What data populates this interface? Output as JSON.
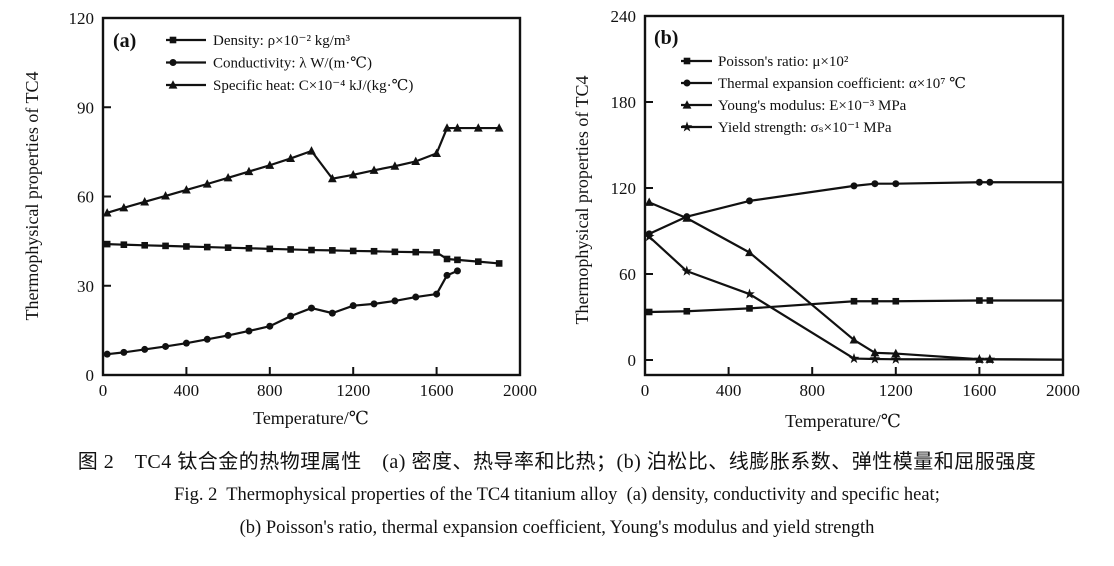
{
  "figure": {
    "caption_zh": "图 2　TC4 钛合金的热物理属性　(a) 密度、热导率和比热；(b) 泊松比、线膨胀系数、弹性模量和屈服强度",
    "caption_en_line1": "Fig. 2  Thermophysical properties of the TC4 titanium alloy  (a) density, conductivity and specific heat;",
    "caption_en_line2": "(b) Poisson's ratio, thermal expansion coefficient, Young's modulus and yield strength"
  },
  "colors": {
    "ink": "#111111",
    "background": "#ffffff"
  },
  "chart_data": [
    {
      "type": "line",
      "panel_label": "(a)",
      "title": "",
      "xlabel": "Temperature/℃",
      "ylabel": "Thermophysical properties of TC4",
      "xlim": [
        0,
        2000
      ],
      "ylim": [
        0,
        120
      ],
      "xticks": [
        0,
        400,
        800,
        1200,
        1600,
        2000
      ],
      "yticks": [
        0,
        30,
        60,
        90,
        120
      ],
      "grid": false,
      "legend_position": "inside-top-left",
      "series": [
        {
          "name": "Density: ρ×10⁻² kg/m³",
          "marker": "square",
          "x": [
            20,
            100,
            200,
            300,
            400,
            500,
            600,
            700,
            800,
            900,
            1000,
            1100,
            1200,
            1300,
            1400,
            1500,
            1600,
            1650,
            1700,
            1800,
            1900
          ],
          "y": [
            44,
            43.8,
            43.6,
            43.4,
            43.2,
            43,
            42.8,
            42.6,
            42.4,
            42.2,
            42,
            41.9,
            41.7,
            41.6,
            41.4,
            41.3,
            41.2,
            39,
            38.7,
            38.1,
            37.5
          ]
        },
        {
          "name": "Conductivity: λ W/(m·℃)",
          "marker": "circle",
          "x": [
            20,
            100,
            200,
            300,
            400,
            500,
            600,
            700,
            800,
            900,
            1000,
            1100,
            1200,
            1300,
            1400,
            1500,
            1600,
            1650,
            1700
          ],
          "y": [
            7,
            7.6,
            8.6,
            9.6,
            10.7,
            12,
            13.3,
            14.8,
            16.4,
            19.8,
            22.5,
            20.8,
            23.3,
            23.9,
            24.9,
            26.2,
            27.2,
            33.5,
            35
          ]
        },
        {
          "name": "Specific heat: C×10⁻⁴ kJ/(kg·℃)",
          "marker": "triangle",
          "x": [
            20,
            100,
            200,
            300,
            400,
            500,
            600,
            700,
            800,
            900,
            1000,
            1100,
            1200,
            1300,
            1400,
            1500,
            1600,
            1650,
            1700,
            1800,
            1900
          ],
          "y": [
            54.5,
            56.2,
            58.2,
            60.2,
            62.2,
            64.2,
            66.3,
            68.4,
            70.5,
            72.8,
            75.3,
            66,
            67.3,
            68.8,
            70.2,
            71.8,
            74.5,
            83,
            83,
            83,
            83
          ]
        }
      ]
    },
    {
      "type": "line",
      "panel_label": "(b)",
      "title": "",
      "xlabel": "Temperature/℃",
      "ylabel": "Thermophysical properties of TC4",
      "xlim": [
        0,
        2000
      ],
      "ylim": [
        0,
        240
      ],
      "xticks": [
        0,
        400,
        800,
        1200,
        1600,
        2000
      ],
      "yticks": [
        0,
        60,
        120,
        180,
        240
      ],
      "grid": false,
      "legend_position": "inside-top-left",
      "series": [
        {
          "name": "Poisson's ratio: μ×10²",
          "marker": "square",
          "x": [
            20,
            200,
            500,
            1000,
            1100,
            1200,
            1600,
            1650
          ],
          "y": [
            33.5,
            34,
            36,
            41,
            41,
            41,
            41.5,
            41.5
          ],
          "extend_to": [
            2000,
            41.5
          ]
        },
        {
          "name": "Thermal expansion coefficient: α×10⁷ ℃",
          "marker": "circle",
          "x": [
            20,
            200,
            500,
            1000,
            1100,
            1200,
            1600,
            1650
          ],
          "y": [
            88,
            100,
            111,
            121.5,
            123,
            123,
            124,
            124
          ],
          "extend_to": [
            2000,
            124
          ]
        },
        {
          "name": "Young's modulus: E×10⁻³ MPa",
          "marker": "triangle",
          "x": [
            20,
            200,
            500,
            1000,
            1100,
            1200,
            1600,
            1650
          ],
          "y": [
            110,
            99,
            75,
            14,
            5,
            4.5,
            0.5,
            0.5
          ],
          "extend_to": [
            2000,
            0.3
          ]
        },
        {
          "name": "Yield strength: σₛ×10⁻¹ MPa",
          "marker": "star",
          "x": [
            20,
            200,
            500,
            1000,
            1100,
            1200,
            1600,
            1650
          ],
          "y": [
            86,
            62,
            46,
            1,
            0.7,
            0.5,
            0.4,
            0.4
          ],
          "extend_to": [
            2000,
            0.2
          ]
        }
      ]
    }
  ]
}
